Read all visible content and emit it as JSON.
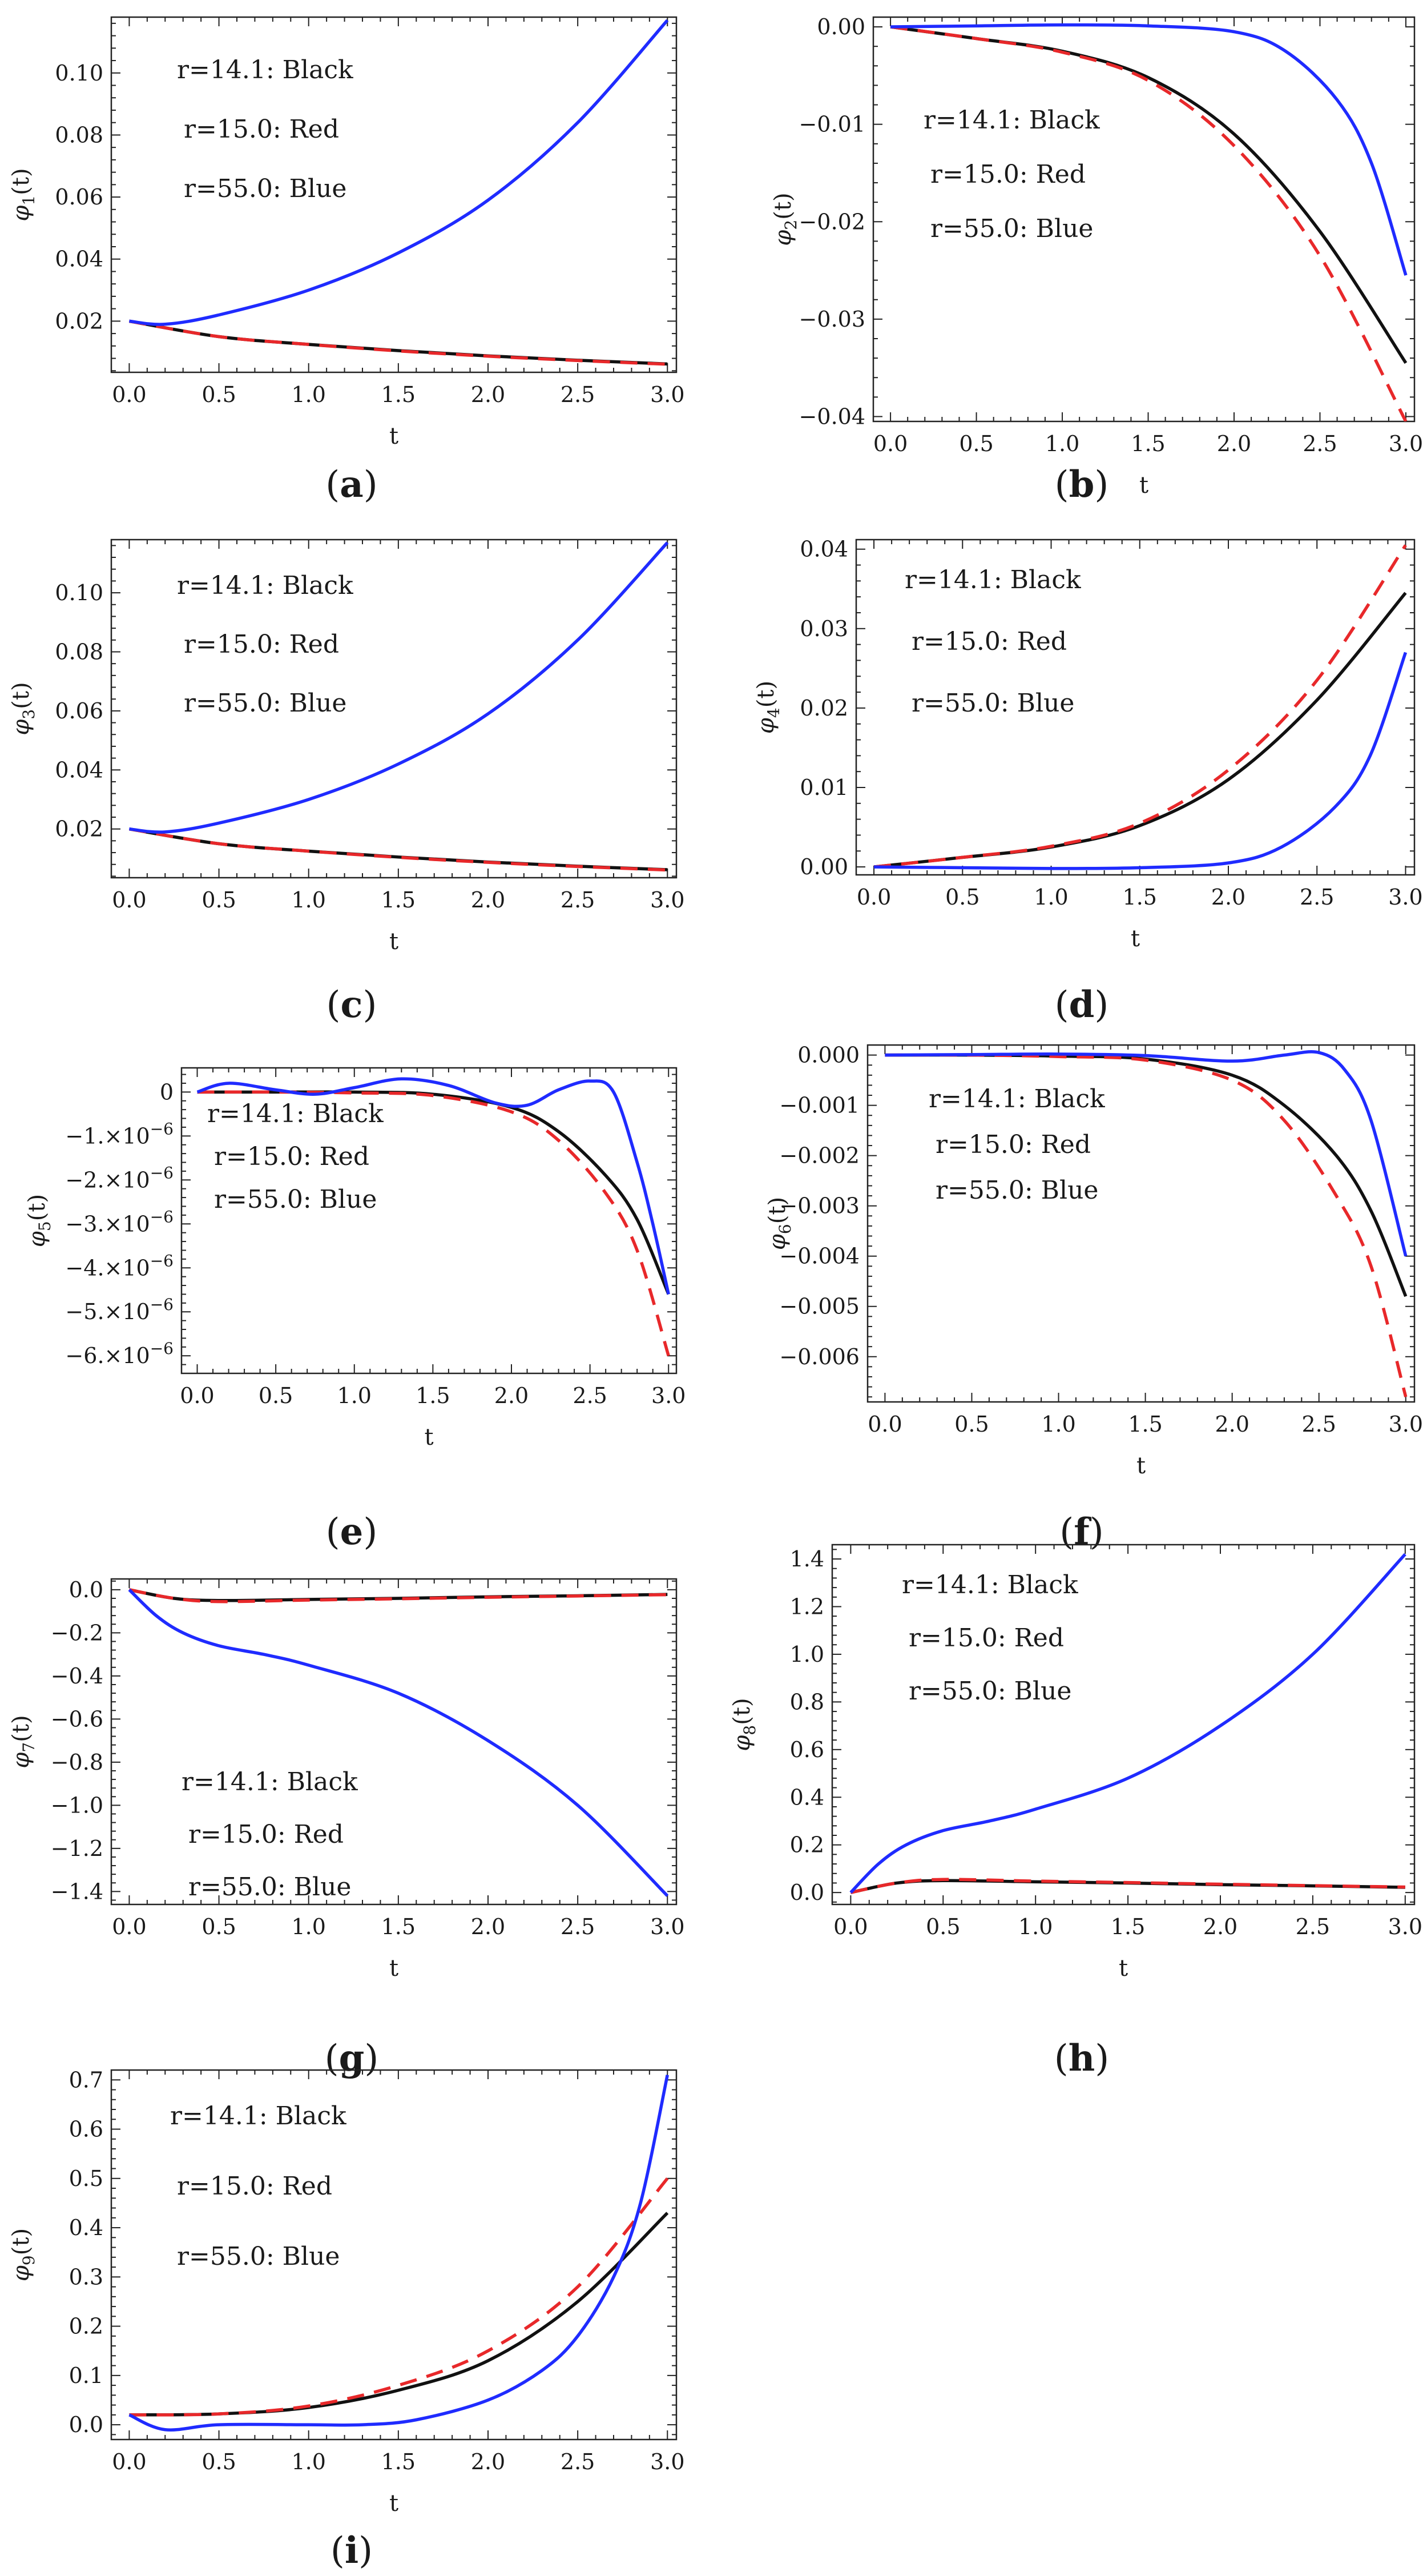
{
  "legend_entries": [
    "r=14.1: Black",
    "r=15.0: Red",
    "r=55.0: Blue"
  ],
  "colors": {
    "black": "#111111",
    "red": "#e8282a",
    "blue": "#1f2bff"
  },
  "chart_data": [
    {
      "type": "line",
      "panel": "(a)",
      "xlabel": "t",
      "ylabel": "φ1(t)",
      "xlim": [
        -0.1,
        3.05
      ],
      "ylim": [
        0.0035,
        0.118
      ],
      "xticks": [
        "0.0",
        "0.5",
        "1.0",
        "1.5",
        "2.0",
        "2.5",
        "3.0"
      ],
      "yticks": [
        "0.02",
        "0.04",
        "0.06",
        "0.08",
        "0.10"
      ],
      "legend": [
        "r=14.1: Black",
        "r=15.0: Red",
        "r=55.0: Blue"
      ],
      "series": [
        {
          "name": "r=14.1",
          "color": "#111111",
          "dash": false,
          "x": [
            0,
            0.5,
            1,
            1.5,
            2,
            2.5,
            3
          ],
          "y": [
            0.02,
            0.015,
            0.0125,
            0.0105,
            0.0088,
            0.0074,
            0.0062
          ]
        },
        {
          "name": "r=15.0",
          "color": "#e8282a",
          "dash": true,
          "x": [
            0,
            0.5,
            1,
            1.5,
            2,
            2.5,
            3
          ],
          "y": [
            0.02,
            0.015,
            0.0125,
            0.0104,
            0.0087,
            0.0073,
            0.0061
          ]
        },
        {
          "name": "r=55.0",
          "color": "#1f2bff",
          "dash": false,
          "x": [
            0,
            0.2,
            0.5,
            1,
            1.5,
            2,
            2.5,
            3
          ],
          "y": [
            0.02,
            0.019,
            0.022,
            0.03,
            0.042,
            0.059,
            0.084,
            0.117
          ]
        }
      ]
    },
    {
      "type": "line",
      "panel": "(b)",
      "xlabel": "t",
      "ylabel": "φ2(t)",
      "xlim": [
        -0.1,
        3.05
      ],
      "ylim": [
        -0.0405,
        0.001
      ],
      "xticks": [
        "0.0",
        "0.5",
        "1.0",
        "1.5",
        "2.0",
        "2.5",
        "3.0"
      ],
      "yticks": [
        "0.00",
        "−0.01",
        "−0.02",
        "−0.03",
        "−0.04"
      ],
      "legend": [
        "r=14.1: Black",
        "r=15.0: Red",
        "r=55.0: Blue"
      ],
      "series": [
        {
          "name": "r=14.1",
          "color": "#111111",
          "dash": false,
          "x": [
            0,
            0.5,
            1,
            1.5,
            2,
            2.5,
            3
          ],
          "y": [
            0,
            -0.0012,
            -0.0025,
            -0.0052,
            -0.011,
            -0.021,
            -0.0345
          ]
        },
        {
          "name": "r=15.0",
          "color": "#e8282a",
          "dash": true,
          "x": [
            0,
            0.5,
            1,
            1.5,
            2,
            2.5,
            3
          ],
          "y": [
            0,
            -0.0012,
            -0.0026,
            -0.0055,
            -0.0122,
            -0.0235,
            -0.0405
          ]
        },
        {
          "name": "r=55.0",
          "color": "#1f2bff",
          "dash": false,
          "x": [
            0,
            0.5,
            1,
            1.5,
            2,
            2.3,
            2.6,
            2.8,
            3
          ],
          "y": [
            0,
            0.0001,
            0.0002,
            0.0001,
            -0.0005,
            -0.0025,
            -0.0075,
            -0.014,
            -0.0255
          ]
        }
      ]
    },
    {
      "type": "line",
      "panel": "(c)",
      "xlabel": "t",
      "ylabel": "φ3(t)",
      "xlim": [
        -0.1,
        3.05
      ],
      "ylim": [
        0.0035,
        0.118
      ],
      "xticks": [
        "0.0",
        "0.5",
        "1.0",
        "1.5",
        "2.0",
        "2.5",
        "3.0"
      ],
      "yticks": [
        "0.02",
        "0.04",
        "0.06",
        "0.08",
        "0.10"
      ],
      "legend": [
        "r=14.1: Black",
        "r=15.0: Red",
        "r=55.0: Blue"
      ],
      "series": [
        {
          "name": "r=14.1",
          "color": "#111111",
          "dash": false,
          "x": [
            0,
            0.5,
            1,
            1.5,
            2,
            2.5,
            3
          ],
          "y": [
            0.02,
            0.015,
            0.0125,
            0.0105,
            0.0088,
            0.0074,
            0.0062
          ]
        },
        {
          "name": "r=15.0",
          "color": "#e8282a",
          "dash": true,
          "x": [
            0,
            0.5,
            1,
            1.5,
            2,
            2.5,
            3
          ],
          "y": [
            0.02,
            0.015,
            0.0125,
            0.0104,
            0.0087,
            0.0073,
            0.0061
          ]
        },
        {
          "name": "r=55.0",
          "color": "#1f2bff",
          "dash": false,
          "x": [
            0,
            0.2,
            0.5,
            1,
            1.5,
            2,
            2.5,
            3
          ],
          "y": [
            0.02,
            0.019,
            0.022,
            0.03,
            0.042,
            0.059,
            0.084,
            0.117
          ]
        }
      ]
    },
    {
      "type": "line",
      "panel": "(d)",
      "xlabel": "t",
      "ylabel": "φ4(t)",
      "xlim": [
        -0.1,
        3.05
      ],
      "ylim": [
        -0.001,
        0.0412
      ],
      "xticks": [
        "0.0",
        "0.5",
        "1.0",
        "1.5",
        "2.0",
        "2.5",
        "3.0"
      ],
      "yticks": [
        "0.00",
        "0.01",
        "0.02",
        "0.03",
        "0.04"
      ],
      "legend": [
        "r=14.1: Black",
        "r=15.0: Red",
        "r=55.0: Blue"
      ],
      "series": [
        {
          "name": "r=14.1",
          "color": "#111111",
          "dash": false,
          "x": [
            0,
            0.5,
            1,
            1.5,
            2,
            2.5,
            3
          ],
          "y": [
            0,
            0.0012,
            0.0025,
            0.0052,
            0.011,
            0.021,
            0.0345
          ]
        },
        {
          "name": "r=15.0",
          "color": "#e8282a",
          "dash": true,
          "x": [
            0,
            0.5,
            1,
            1.5,
            2,
            2.5,
            3
          ],
          "y": [
            0,
            0.0012,
            0.0026,
            0.0055,
            0.0122,
            0.0235,
            0.0405
          ]
        },
        {
          "name": "r=55.0",
          "color": "#1f2bff",
          "dash": false,
          "x": [
            0,
            0.5,
            1,
            1.5,
            2,
            2.3,
            2.6,
            2.8,
            3
          ],
          "y": [
            0,
            -0.0001,
            -0.0002,
            -0.0001,
            0.0005,
            0.0025,
            0.0075,
            0.014,
            0.027
          ]
        }
      ]
    },
    {
      "type": "line",
      "panel": "(e)",
      "xlabel": "t",
      "ylabel": "φ5(t)",
      "xlim": [
        -0.1,
        3.05
      ],
      "ylim": [
        -6.4e-06,
        5.5e-07
      ],
      "xticks": [
        "0.0",
        "0.5",
        "1.0",
        "1.5",
        "2.0",
        "2.5",
        "3.0"
      ],
      "yticks": [
        [
          "0",
          ""
        ],
        [
          "−1.×10",
          "−6"
        ],
        [
          "−2.×10",
          "−6"
        ],
        [
          "−3.×10",
          "−6"
        ],
        [
          "−4.×10",
          "−6"
        ],
        [
          "−5.×10",
          "−6"
        ],
        [
          "−6.×10",
          "−6"
        ]
      ],
      "yticks_values": [
        0,
        -1e-06,
        -2e-06,
        -3e-06,
        -4e-06,
        -5e-06,
        -6e-06
      ],
      "legend": [
        "r=14.1: Black",
        "r=15.0: Red",
        "r=55.0: Blue"
      ],
      "series": [
        {
          "name": "r=14.1",
          "color": "#111111",
          "dash": false,
          "x": [
            0,
            0.5,
            1,
            1.5,
            2,
            2.3,
            2.6,
            2.8,
            3
          ],
          "y": [
            0,
            0,
            0,
            -5e-08,
            -3.5e-07,
            -9e-07,
            -1.9e-06,
            -2.9e-06,
            -4.6e-06
          ]
        },
        {
          "name": "r=15.0",
          "color": "#e8282a",
          "dash": true,
          "x": [
            0,
            0.5,
            1,
            1.5,
            2,
            2.3,
            2.6,
            2.8,
            3
          ],
          "y": [
            0,
            0,
            -2e-08,
            -8e-08,
            -4.5e-07,
            -1.1e-06,
            -2.3e-06,
            -3.6e-06,
            -6e-06
          ]
        },
        {
          "name": "r=55.0",
          "color": "#1f2bff",
          "dash": false,
          "x": [
            0,
            0.2,
            0.5,
            0.75,
            1.0,
            1.3,
            1.6,
            1.9,
            2.1,
            2.3,
            2.5,
            2.65,
            2.8,
            2.9,
            3
          ],
          "y": [
            0,
            2e-07,
            5e-08,
            -5e-08,
            1e-07,
            3e-07,
            1.5e-07,
            -2.5e-07,
            -3e-07,
            5e-08,
            2.5e-07,
            0.0,
            -1.6e-06,
            -3e-06,
            -4.6e-06
          ]
        }
      ]
    },
    {
      "type": "line",
      "panel": "(f)",
      "xlabel": "t",
      "ylabel": "φ6(t)",
      "xlim": [
        -0.1,
        3.05
      ],
      "ylim": [
        -0.0069,
        0.0002
      ],
      "xticks": [
        "0.0",
        "0.5",
        "1.0",
        "1.5",
        "2.0",
        "2.5",
        "3.0"
      ],
      "yticks": [
        "0.000",
        "−0.001",
        "−0.002",
        "−0.003",
        "−0.004",
        "−0.005",
        "−0.006"
      ],
      "legend": [
        "r=14.1: Black",
        "r=15.0: Red",
        "r=55.0: Blue"
      ],
      "series": [
        {
          "name": "r=14.1",
          "color": "#111111",
          "dash": false,
          "x": [
            0,
            0.5,
            1,
            1.5,
            2,
            2.3,
            2.6,
            2.8,
            3
          ],
          "y": [
            0,
            0,
            -2e-05,
            -8e-05,
            -0.0004,
            -0.001,
            -0.002,
            -0.0031,
            -0.0048
          ]
        },
        {
          "name": "r=15.0",
          "color": "#e8282a",
          "dash": true,
          "x": [
            0,
            0.5,
            1,
            1.5,
            2,
            2.3,
            2.6,
            2.8,
            3
          ],
          "y": [
            0,
            0,
            -3e-05,
            -0.0001,
            -0.0005,
            -0.0013,
            -0.0028,
            -0.0042,
            -0.0068
          ]
        },
        {
          "name": "r=55.0",
          "color": "#1f2bff",
          "dash": false,
          "x": [
            0,
            0.5,
            1,
            1.5,
            2,
            2.3,
            2.5,
            2.65,
            2.8,
            3
          ],
          "y": [
            0,
            1e-05,
            2e-05,
            -1e-05,
            -0.00012,
            0.0,
            5e-05,
            -0.0003,
            -0.0013,
            -0.004
          ]
        }
      ]
    },
    {
      "type": "line",
      "panel": "(g)",
      "xlabel": "t",
      "ylabel": "φ7(t)",
      "xlim": [
        -0.1,
        3.05
      ],
      "ylim": [
        -1.46,
        0.05
      ],
      "xticks": [
        "0.0",
        "0.5",
        "1.0",
        "1.5",
        "2.0",
        "2.5",
        "3.0"
      ],
      "yticks": [
        "0.0",
        "−0.2",
        "−0.4",
        "−0.6",
        "−0.8",
        "−1.0",
        "−1.2",
        "−1.4"
      ],
      "legend": [
        "r=14.1: Black",
        "r=15.0: Red",
        "r=55.0: Blue"
      ],
      "series": [
        {
          "name": "r=14.1",
          "color": "#111111",
          "dash": false,
          "x": [
            0,
            0.25,
            0.5,
            1,
            1.5,
            2,
            2.5,
            3
          ],
          "y": [
            0,
            -0.04,
            -0.05,
            -0.045,
            -0.04,
            -0.033,
            -0.028,
            -0.022
          ]
        },
        {
          "name": "r=15.0",
          "color": "#e8282a",
          "dash": true,
          "x": [
            0,
            0.25,
            0.5,
            1,
            1.5,
            2,
            2.5,
            3
          ],
          "y": [
            0,
            -0.04,
            -0.055,
            -0.048,
            -0.042,
            -0.035,
            -0.029,
            -0.023
          ]
        },
        {
          "name": "r=55.0",
          "color": "#1f2bff",
          "dash": false,
          "x": [
            0,
            0.15,
            0.3,
            0.5,
            0.75,
            1,
            1.5,
            2,
            2.5,
            3
          ],
          "y": [
            0,
            -0.12,
            -0.2,
            -0.26,
            -0.3,
            -0.35,
            -0.48,
            -0.7,
            -1.0,
            -1.42
          ]
        }
      ]
    },
    {
      "type": "line",
      "panel": "(h)",
      "xlabel": "t",
      "ylabel": "φ8(t)",
      "xlim": [
        -0.1,
        3.05
      ],
      "ylim": [
        -0.05,
        1.46
      ],
      "xticks": [
        "0.0",
        "0.5",
        "1.0",
        "1.5",
        "2.0",
        "2.5",
        "3.0"
      ],
      "yticks": [
        "0.0",
        "0.2",
        "0.4",
        "0.6",
        "0.8",
        "1.0",
        "1.2",
        "1.4"
      ],
      "legend": [
        "r=14.1: Black",
        "r=15.0: Red",
        "r=55.0: Blue"
      ],
      "series": [
        {
          "name": "r=14.1",
          "color": "#111111",
          "dash": false,
          "x": [
            0,
            0.25,
            0.5,
            1,
            1.5,
            2,
            2.5,
            3
          ],
          "y": [
            0,
            0.04,
            0.05,
            0.045,
            0.04,
            0.033,
            0.028,
            0.022
          ]
        },
        {
          "name": "r=15.0",
          "color": "#e8282a",
          "dash": true,
          "x": [
            0,
            0.25,
            0.5,
            1,
            1.5,
            2,
            2.5,
            3
          ],
          "y": [
            0,
            0.04,
            0.055,
            0.048,
            0.042,
            0.035,
            0.029,
            0.023
          ]
        },
        {
          "name": "r=55.0",
          "color": "#1f2bff",
          "dash": false,
          "x": [
            0,
            0.15,
            0.3,
            0.5,
            0.75,
            1,
            1.5,
            2,
            2.5,
            3
          ],
          "y": [
            0,
            0.12,
            0.2,
            0.26,
            0.3,
            0.35,
            0.48,
            0.7,
            1.0,
            1.42
          ]
        }
      ]
    },
    {
      "type": "line",
      "panel": "(i)",
      "xlabel": "t",
      "ylabel": "φ9(t)",
      "xlim": [
        -0.1,
        3.05
      ],
      "ylim": [
        -0.03,
        0.72
      ],
      "xticks": [
        "0.0",
        "0.5",
        "1.0",
        "1.5",
        "2.0",
        "2.5",
        "3.0"
      ],
      "yticks": [
        "0.0",
        "0.1",
        "0.2",
        "0.3",
        "0.4",
        "0.5",
        "0.6",
        "0.7"
      ],
      "legend": [
        "r=14.1: Black",
        "r=15.0: Red",
        "r=55.0: Blue"
      ],
      "series": [
        {
          "name": "r=14.1",
          "color": "#111111",
          "dash": false,
          "x": [
            0,
            0.5,
            1,
            1.5,
            2,
            2.5,
            3
          ],
          "y": [
            0.02,
            0.022,
            0.035,
            0.07,
            0.13,
            0.25,
            0.43
          ]
        },
        {
          "name": "r=15.0",
          "color": "#e8282a",
          "dash": true,
          "x": [
            0,
            0.5,
            1,
            1.5,
            2,
            2.5,
            3
          ],
          "y": [
            0.02,
            0.022,
            0.038,
            0.08,
            0.15,
            0.28,
            0.5
          ]
        },
        {
          "name": "r=55.0",
          "color": "#1f2bff",
          "dash": false,
          "x": [
            0,
            0.2,
            0.5,
            1,
            1.3,
            1.6,
            2,
            2.3,
            2.5,
            2.7,
            2.85,
            3
          ],
          "y": [
            0.02,
            -0.01,
            0.0,
            0.0,
            0.0,
            0.01,
            0.05,
            0.11,
            0.18,
            0.3,
            0.45,
            0.71
          ]
        }
      ]
    }
  ],
  "axis_labels": {
    "x_label": "t"
  },
  "panel_labels": [
    {
      "letter": "a"
    },
    {
      "letter": "b"
    },
    {
      "letter": "c"
    },
    {
      "letter": "d"
    },
    {
      "letter": "e"
    },
    {
      "letter": "f"
    },
    {
      "letter": "g"
    },
    {
      "letter": "h"
    },
    {
      "letter": "i"
    }
  ]
}
